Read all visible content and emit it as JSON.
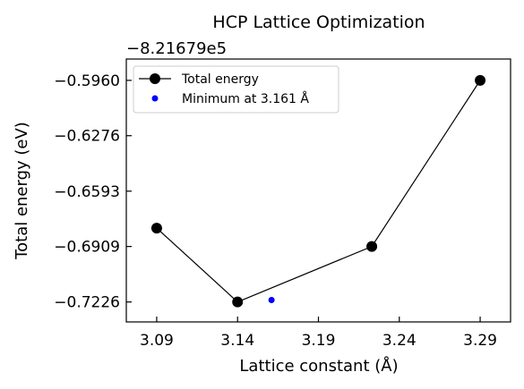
{
  "chart_data": {
    "type": "line",
    "title": "HCP Lattice Optimization",
    "xlabel": "Lattice constant (Å)",
    "ylabel": "Total energy (eV)",
    "y_offset_label": "−8.21679e5",
    "xlim": [
      3.0712,
      3.3088
    ],
    "ylim": [
      -0.734,
      -0.5838
    ],
    "x_ticks": [
      3.09,
      3.14,
      3.19,
      3.24,
      3.29
    ],
    "x_tick_labels": [
      "3.09",
      "3.14",
      "3.19",
      "3.24",
      "3.29"
    ],
    "y_ticks": [
      -0.596,
      -0.6276,
      -0.6593,
      -0.6909,
      -0.7226
    ],
    "y_tick_labels": [
      "−0.5960",
      "−0.6276",
      "−0.6593",
      "−0.6909",
      "−0.7226"
    ],
    "grid": false,
    "legend_position": "top-left",
    "series": [
      {
        "name": "Total energy",
        "style": "line-with-markers",
        "color": "#000000",
        "x": [
          3.09,
          3.14,
          3.223,
          3.29
        ],
        "y": [
          -0.6804,
          -0.7226,
          -0.6909,
          -0.596
        ]
      },
      {
        "name": "Minimum at 3.161 Å",
        "style": "points",
        "color": "#0000ff",
        "x": [
          3.161
        ],
        "y": [
          -0.7215
        ]
      }
    ]
  }
}
